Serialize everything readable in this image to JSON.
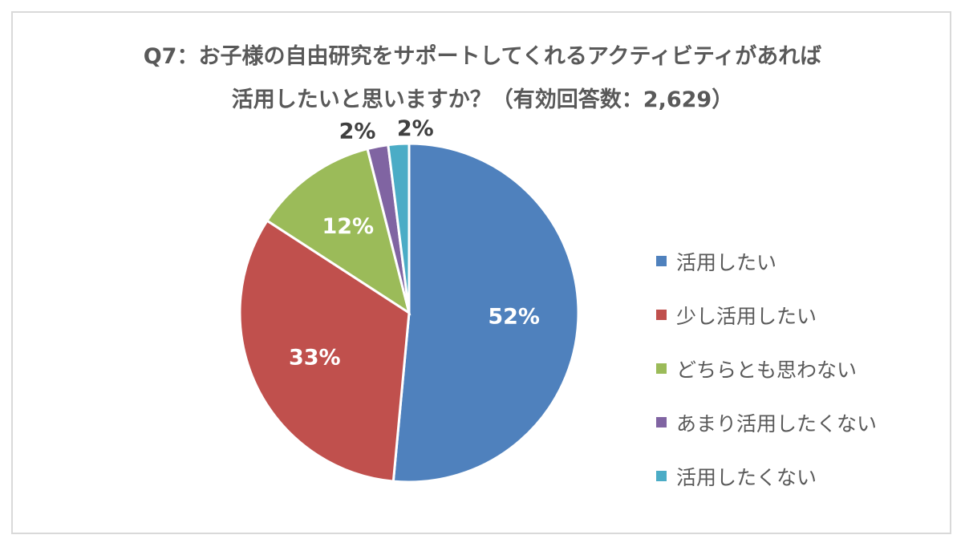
{
  "chart_data": {
    "type": "pie",
    "title_lines": [
      "Q7：お子様の自由研究をサポートしてくれるアクティビティがあれば",
      "活用したいと思いますか？（有効回答数：2,629）"
    ],
    "categories": [
      "活用したい",
      "少し活用したい",
      "どちらとも思わない",
      "あまり活用したくない",
      "活用したくない"
    ],
    "values": [
      52,
      33,
      12,
      2,
      2
    ],
    "labels": [
      "52%",
      "33%",
      "12%",
      "2%",
      "2%"
    ],
    "colors": [
      "#4f81bd",
      "#c0504d",
      "#9bbb59",
      "#8064a2",
      "#4bacc6"
    ],
    "start": "12 o'clock, clockwise",
    "legend_position": "right"
  }
}
